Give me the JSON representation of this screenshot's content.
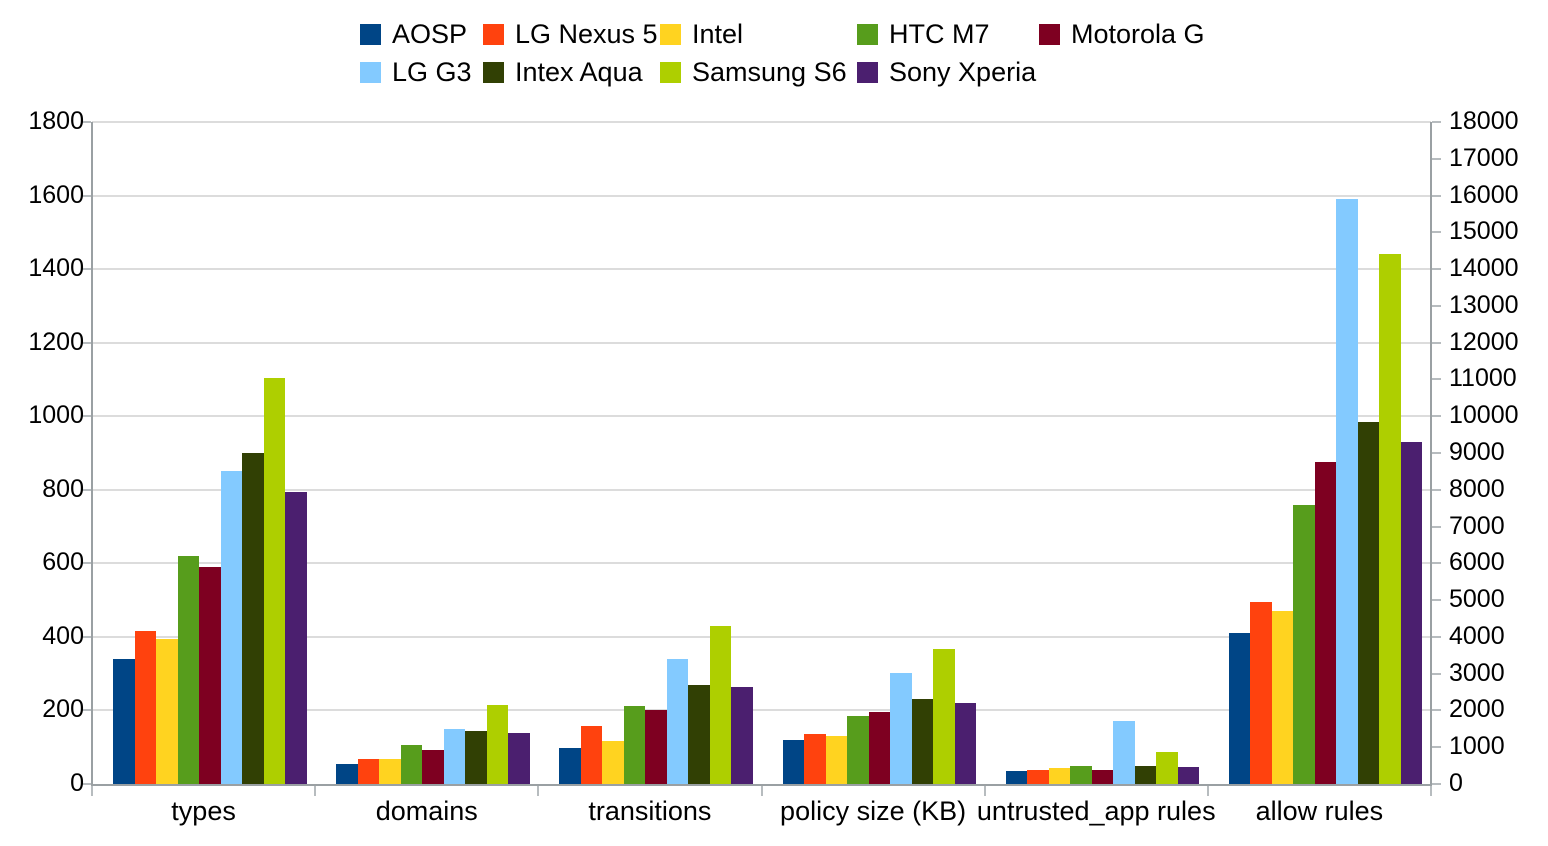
{
  "chart_data": {
    "type": "bar",
    "title": "",
    "xlabel": "",
    "ylabel_left": "",
    "ylabel_right": "",
    "grid": "horizontal",
    "legend_position": "top",
    "categories": [
      "types",
      "domains",
      "transitions",
      "policy size (KB)",
      "untrusted_app rules",
      "allow rules"
    ],
    "secondary_axis_category": "allow rules",
    "series": [
      {
        "name": "AOSP",
        "color": "#004586",
        "values": [
          340,
          55,
          97,
          120,
          36,
          4100
        ]
      },
      {
        "name": "LG Nexus 5",
        "color": "#FF420E",
        "values": [
          415,
          68,
          158,
          137,
          38,
          4950
        ]
      },
      {
        "name": "Intel",
        "color": "#FFD320",
        "values": [
          395,
          67,
          116,
          130,
          44,
          4700
        ]
      },
      {
        "name": "HTC M7",
        "color": "#579D1C",
        "values": [
          620,
          107,
          213,
          184,
          50,
          7600
        ]
      },
      {
        "name": "Motorola G",
        "color": "#7E0021",
        "values": [
          590,
          93,
          200,
          195,
          39,
          8750
        ]
      },
      {
        "name": "LG G3",
        "color": "#83CAFF",
        "values": [
          850,
          150,
          340,
          303,
          170,
          15900
        ]
      },
      {
        "name": "Intex Aqua",
        "color": "#314004",
        "values": [
          900,
          143,
          268,
          232,
          48,
          9850
        ]
      },
      {
        "name": "Samsung S6",
        "color": "#AECF00",
        "values": [
          1103,
          215,
          430,
          368,
          86,
          14400
        ]
      },
      {
        "name": "Sony Xperia",
        "color": "#4B1F6F",
        "values": [
          795,
          140,
          265,
          220,
          46,
          9300
        ]
      }
    ],
    "left_axis": {
      "min": 0,
      "max": 1800,
      "step": 200,
      "ticks": [
        0,
        200,
        400,
        600,
        800,
        1000,
        1200,
        1400,
        1600,
        1800
      ]
    },
    "right_axis": {
      "min": 0,
      "max": 18000,
      "step": 1000,
      "ticks": [
        0,
        1000,
        2000,
        3000,
        4000,
        5000,
        6000,
        7000,
        8000,
        9000,
        10000,
        11000,
        12000,
        13000,
        14000,
        15000,
        16000,
        17000,
        18000
      ]
    },
    "legend_rows": [
      [
        "AOSP",
        "LG Nexus 5",
        "Intel",
        "HTC M7",
        "Motorola G"
      ],
      [
        "LG G3",
        "Intex Aqua",
        "Samsung S6",
        "Sony Xperia"
      ]
    ]
  }
}
